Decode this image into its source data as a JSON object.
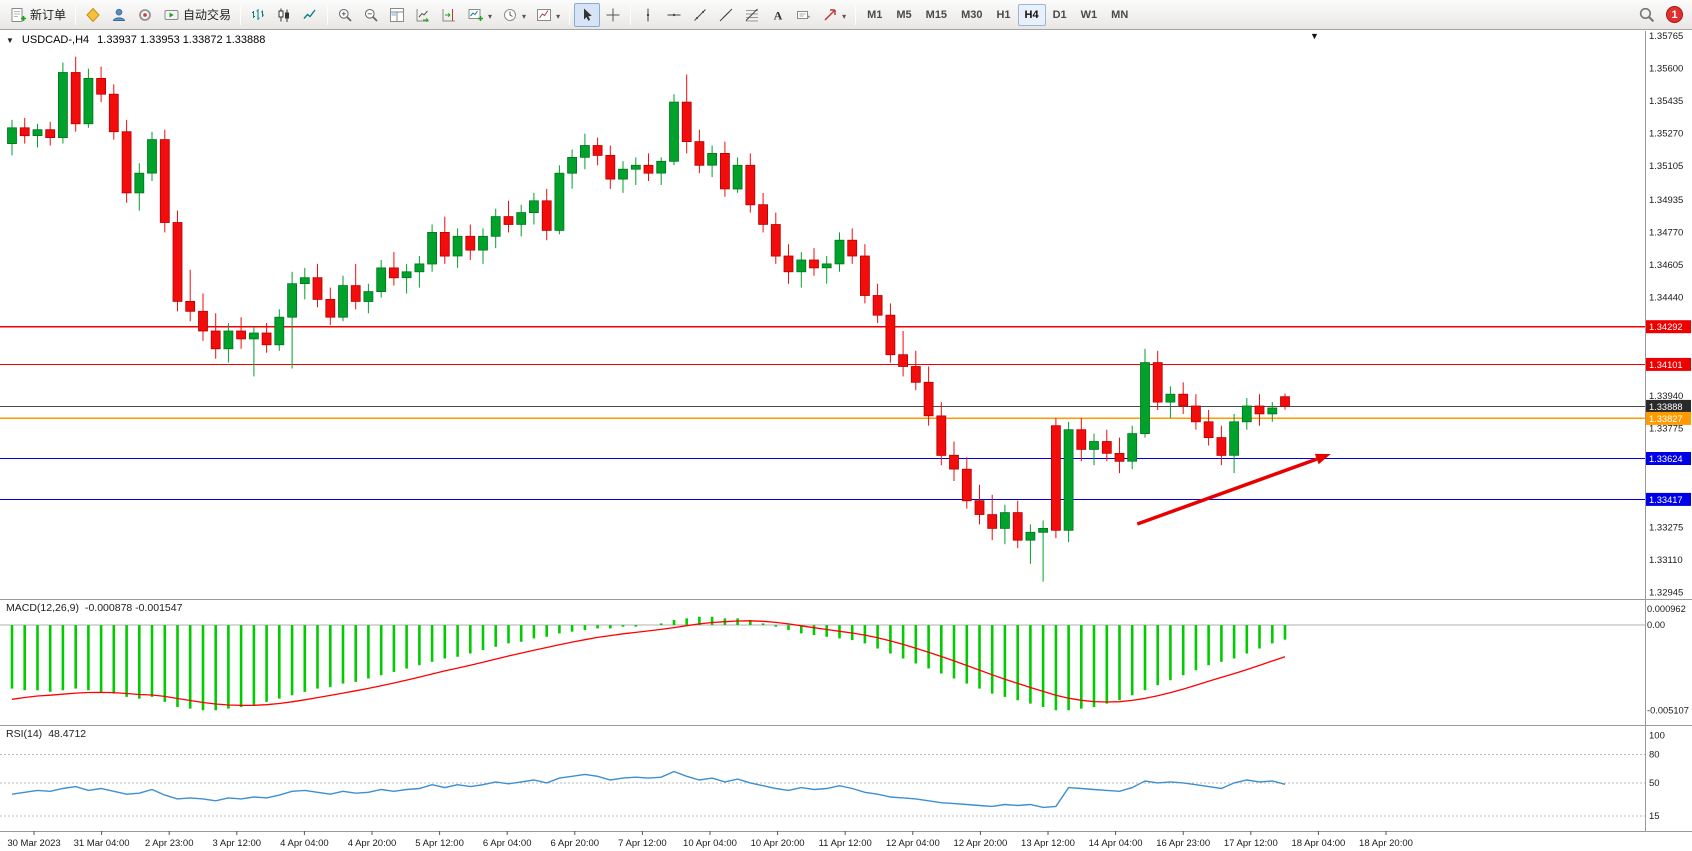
{
  "toolbar": {
    "new_order_label": "新订单",
    "autotrade_label": "自动交易",
    "timeframes": [
      "M1",
      "M5",
      "M15",
      "M30",
      "H1",
      "H4",
      "D1",
      "W1",
      "MN"
    ],
    "active_timeframe": "H4",
    "notification_count": "1"
  },
  "chart": {
    "symbol_label": "USDCAD-,H4",
    "ohlc_label": "1.33937 1.33953 1.33872 1.33888"
  },
  "indicators": {
    "macd": {
      "name": "MACD(12,26,9)",
      "values": "-0.000878 -0.001547"
    },
    "rsi": {
      "name": "RSI(14)",
      "value": "48.4712"
    }
  },
  "chart_data": {
    "type": "candlestick",
    "symbol": "USDCAD-",
    "timeframe": "H4",
    "ohlc_current": {
      "open": 1.33937,
      "high": 1.33953,
      "low": 1.33872,
      "close": 1.33888
    },
    "ylim": [
      1.32945,
      1.35765
    ],
    "up_color": "#00a22b",
    "up_border": "#00751d",
    "down_color": "#f20c0c",
    "down_border": "#b80000",
    "price_axis_labels": [
      "1.35765",
      "1.35600",
      "1.35435",
      "1.35270",
      "1.35105",
      "1.34935",
      "1.34770",
      "1.34605",
      "1.34440",
      "1.33940",
      "1.33775",
      "1.33275",
      "1.33110",
      "1.32945"
    ],
    "levels": [
      {
        "price": 1.34292,
        "label": "1.34292",
        "color": "#f00000",
        "badge": "#ef0000",
        "width": 1.3
      },
      {
        "price": 1.34101,
        "label": "1.34101",
        "color": "#f00000",
        "badge": "#ef0000",
        "width": 1.3
      },
      {
        "price": 1.33888,
        "label": "1.33888",
        "color": "#4a4a4a",
        "badge": "#2a2a2a",
        "width": 1
      },
      {
        "price": 1.33827,
        "label": "1.33827",
        "color": "#ff9b00",
        "badge": "#ff9b00",
        "width": 1.5
      },
      {
        "price": 1.33624,
        "label": "1.33624",
        "color": "#0000e8",
        "badge": "#0000e8",
        "width": 1.3
      },
      {
        "price": 1.33417,
        "label": "1.33417",
        "color": "#0000e8",
        "badge": "#0000e8",
        "width": 1.3
      }
    ],
    "trend_arrow": {
      "color": "#e80000",
      "i1": 88.4,
      "p1": 1.33292,
      "i2": 103.6,
      "p2": 1.33647
    },
    "candles": [
      [
        1.3522,
        1.3534,
        1.3516,
        1.353
      ],
      [
        1.353,
        1.3535,
        1.3522,
        1.3526
      ],
      [
        1.3526,
        1.3532,
        1.352,
        1.3529
      ],
      [
        1.3529,
        1.3533,
        1.3521,
        1.3525
      ],
      [
        1.3525,
        1.3563,
        1.3522,
        1.3558
      ],
      [
        1.3558,
        1.3566,
        1.3528,
        1.3532
      ],
      [
        1.3532,
        1.356,
        1.353,
        1.3555
      ],
      [
        1.3555,
        1.3561,
        1.3543,
        1.3547
      ],
      [
        1.3547,
        1.3552,
        1.3524,
        1.3528
      ],
      [
        1.3528,
        1.3534,
        1.3492,
        1.3497
      ],
      [
        1.3497,
        1.3512,
        1.3488,
        1.3507
      ],
      [
        1.3507,
        1.3528,
        1.3503,
        1.3524
      ],
      [
        1.3524,
        1.3529,
        1.3477,
        1.3482
      ],
      [
        1.3482,
        1.3488,
        1.3437,
        1.3442
      ],
      [
        1.3442,
        1.3458,
        1.3432,
        1.3437
      ],
      [
        1.3437,
        1.3446,
        1.3422,
        1.3427
      ],
      [
        1.3427,
        1.3436,
        1.3413,
        1.3418
      ],
      [
        1.3418,
        1.3431,
        1.3411,
        1.3427
      ],
      [
        1.3427,
        1.3434,
        1.3418,
        1.3423
      ],
      [
        1.3423,
        1.3429,
        1.3404,
        1.3426
      ],
      [
        1.3426,
        1.3431,
        1.3416,
        1.342
      ],
      [
        1.342,
        1.3438,
        1.3417,
        1.3434
      ],
      [
        1.3434,
        1.3457,
        1.3408,
        1.3451
      ],
      [
        1.3451,
        1.3459,
        1.3443,
        1.3454
      ],
      [
        1.3454,
        1.3461,
        1.3439,
        1.3443
      ],
      [
        1.3443,
        1.3449,
        1.343,
        1.3434
      ],
      [
        1.3434,
        1.3455,
        1.3432,
        1.345
      ],
      [
        1.345,
        1.3461,
        1.3438,
        1.3442
      ],
      [
        1.3442,
        1.3451,
        1.3436,
        1.3447
      ],
      [
        1.3447,
        1.3463,
        1.3444,
        1.3459
      ],
      [
        1.3459,
        1.3467,
        1.345,
        1.3454
      ],
      [
        1.3454,
        1.3461,
        1.3446,
        1.3457
      ],
      [
        1.3457,
        1.3465,
        1.3449,
        1.3461
      ],
      [
        1.3461,
        1.3481,
        1.3457,
        1.3477
      ],
      [
        1.3477,
        1.3485,
        1.3461,
        1.3465
      ],
      [
        1.3465,
        1.3479,
        1.3459,
        1.3475
      ],
      [
        1.3475,
        1.3481,
        1.3463,
        1.3468
      ],
      [
        1.3468,
        1.3479,
        1.3461,
        1.3475
      ],
      [
        1.3475,
        1.3489,
        1.3469,
        1.3485
      ],
      [
        1.3485,
        1.3493,
        1.3477,
        1.3481
      ],
      [
        1.3481,
        1.3491,
        1.3475,
        1.3487
      ],
      [
        1.3487,
        1.3497,
        1.3481,
        1.3493
      ],
      [
        1.3493,
        1.3499,
        1.3473,
        1.3478
      ],
      [
        1.3478,
        1.3511,
        1.3476,
        1.3507
      ],
      [
        1.3507,
        1.3519,
        1.3499,
        1.3515
      ],
      [
        1.3515,
        1.3527,
        1.3509,
        1.3521
      ],
      [
        1.3521,
        1.3525,
        1.3511,
        1.3516
      ],
      [
        1.3516,
        1.3521,
        1.3499,
        1.3504
      ],
      [
        1.3504,
        1.3513,
        1.3497,
        1.3509
      ],
      [
        1.3509,
        1.3515,
        1.3501,
        1.3511
      ],
      [
        1.3511,
        1.3517,
        1.3503,
        1.3507
      ],
      [
        1.3507,
        1.3515,
        1.3501,
        1.3513
      ],
      [
        1.3513,
        1.3547,
        1.3511,
        1.3543
      ],
      [
        1.3543,
        1.3557,
        1.3517,
        1.3523
      ],
      [
        1.3523,
        1.3529,
        1.3507,
        1.3511
      ],
      [
        1.3511,
        1.3521,
        1.3505,
        1.3517
      ],
      [
        1.3517,
        1.3523,
        1.3495,
        1.3499
      ],
      [
        1.3499,
        1.3515,
        1.3497,
        1.3511
      ],
      [
        1.3511,
        1.3517,
        1.3487,
        1.3491
      ],
      [
        1.3491,
        1.3497,
        1.3477,
        1.3481
      ],
      [
        1.3481,
        1.3487,
        1.3461,
        1.3465
      ],
      [
        1.3465,
        1.3471,
        1.3451,
        1.3457
      ],
      [
        1.3457,
        1.3467,
        1.3449,
        1.3463
      ],
      [
        1.3463,
        1.3469,
        1.3455,
        1.3459
      ],
      [
        1.3459,
        1.3465,
        1.3451,
        1.3461
      ],
      [
        1.3461,
        1.3477,
        1.3457,
        1.3473
      ],
      [
        1.3473,
        1.3479,
        1.3461,
        1.3465
      ],
      [
        1.3465,
        1.3471,
        1.3441,
        1.3445
      ],
      [
        1.3445,
        1.3451,
        1.3431,
        1.3435
      ],
      [
        1.3435,
        1.3441,
        1.3411,
        1.3415
      ],
      [
        1.3415,
        1.3427,
        1.3404,
        1.3409
      ],
      [
        1.3409,
        1.3417,
        1.3397,
        1.3401
      ],
      [
        1.3401,
        1.3409,
        1.3379,
        1.3384
      ],
      [
        1.3384,
        1.3391,
        1.3359,
        1.3364
      ],
      [
        1.3364,
        1.3371,
        1.3351,
        1.3357
      ],
      [
        1.3357,
        1.3363,
        1.3337,
        1.3341
      ],
      [
        1.3341,
        1.3349,
        1.3329,
        1.3334
      ],
      [
        1.3334,
        1.3344,
        1.3321,
        1.3327
      ],
      [
        1.3327,
        1.3339,
        1.3319,
        1.3335
      ],
      [
        1.3335,
        1.3341,
        1.3317,
        1.3321
      ],
      [
        1.3321,
        1.3329,
        1.3309,
        1.3325
      ],
      [
        1.3325,
        1.3331,
        1.33,
        1.3327
      ],
      [
        1.3379,
        1.3383,
        1.3322,
        1.3326
      ],
      [
        1.3326,
        1.3381,
        1.332,
        1.3377
      ],
      [
        1.3377,
        1.3383,
        1.3361,
        1.3367
      ],
      [
        1.3367,
        1.3375,
        1.3359,
        1.3371
      ],
      [
        1.3371,
        1.3377,
        1.3361,
        1.3365
      ],
      [
        1.3365,
        1.3373,
        1.3355,
        1.3361
      ],
      [
        1.3361,
        1.3379,
        1.3357,
        1.3375
      ],
      [
        1.3375,
        1.3418,
        1.3373,
        1.3411
      ],
      [
        1.3411,
        1.3417,
        1.3387,
        1.3391
      ],
      [
        1.3391,
        1.3399,
        1.3383,
        1.3395
      ],
      [
        1.3395,
        1.3401,
        1.3385,
        1.3389
      ],
      [
        1.3389,
        1.3395,
        1.3377,
        1.3381
      ],
      [
        1.3381,
        1.3387,
        1.3369,
        1.3373
      ],
      [
        1.3373,
        1.3379,
        1.3359,
        1.3364
      ],
      [
        1.3364,
        1.3385,
        1.3355,
        1.3381
      ],
      [
        1.3381,
        1.3393,
        1.3377,
        1.3389
      ],
      [
        1.3389,
        1.3395,
        1.3379,
        1.3385
      ],
      [
        1.3385,
        1.3391,
        1.3381,
        1.3388
      ],
      [
        1.33937,
        1.33953,
        1.33872,
        1.33888
      ]
    ],
    "macd": {
      "ylim": [
        -0.0058,
        0.0012
      ],
      "bar_color": "#00cc00",
      "signal_color": "#ff0000",
      "signal_init": -0.0046,
      "axis_labels": [
        [
          "0.000962",
          0.000962
        ],
        [
          "0.00",
          0
        ],
        [
          "-0.005107",
          -0.005107
        ]
      ],
      "values": [
        -0.0038,
        -0.0039,
        -0.0039,
        -0.004,
        -0.0039,
        -0.0038,
        -0.0039,
        -0.004,
        -0.0041,
        -0.0043,
        -0.0044,
        -0.0043,
        -0.0046,
        -0.0049,
        -0.005,
        -0.0051,
        -0.0051,
        -0.005,
        -0.0049,
        -0.0048,
        -0.0046,
        -0.0044,
        -0.0042,
        -0.004,
        -0.0038,
        -0.0037,
        -0.0035,
        -0.0034,
        -0.0032,
        -0.003,
        -0.0028,
        -0.0026,
        -0.0024,
        -0.0022,
        -0.002,
        -0.0019,
        -0.0017,
        -0.0015,
        -0.0013,
        -0.0011,
        -0.001,
        -0.0008,
        -0.0007,
        -0.0005,
        -0.0004,
        -0.0003,
        -0.0002,
        -0.0002,
        -0.0001,
        -0.0001,
        0.0,
        0.0001,
        0.0003,
        0.0004,
        0.0005,
        0.0005,
        0.0004,
        0.0004,
        0.0003,
        0.0001,
        -0.0001,
        -0.0003,
        -0.0005,
        -0.0006,
        -0.0007,
        -0.0008,
        -0.0009,
        -0.0011,
        -0.0014,
        -0.0017,
        -0.002,
        -0.0023,
        -0.0026,
        -0.0029,
        -0.0032,
        -0.0035,
        -0.0038,
        -0.0041,
        -0.0043,
        -0.0045,
        -0.0047,
        -0.0049,
        -0.0051,
        -0.0051,
        -0.005,
        -0.0049,
        -0.0047,
        -0.0045,
        -0.0042,
        -0.0039,
        -0.0036,
        -0.0033,
        -0.003,
        -0.0027,
        -0.0024,
        -0.0022,
        -0.002,
        -0.0017,
        -0.0014,
        -0.0011,
        -0.000878
      ]
    },
    "rsi": {
      "ylim": [
        0,
        105
      ],
      "line_color": "#3d8fd1",
      "levels": [
        80,
        50,
        15
      ],
      "axis_labels": [
        [
          "100",
          100
        ],
        [
          "80",
          80
        ],
        [
          "50",
          50
        ],
        [
          "15",
          15
        ]
      ],
      "values": [
        38,
        40,
        42,
        41,
        44,
        46,
        42,
        44,
        41,
        38,
        39,
        43,
        37,
        33,
        34,
        33,
        31,
        34,
        33,
        35,
        34,
        37,
        41,
        42,
        40,
        38,
        41,
        39,
        40,
        43,
        41,
        43,
        44,
        48,
        45,
        48,
        46,
        48,
        51,
        49,
        51,
        53,
        50,
        55,
        57,
        59,
        57,
        53,
        55,
        56,
        55,
        56,
        62,
        57,
        53,
        55,
        51,
        54,
        50,
        47,
        44,
        42,
        45,
        43,
        44,
        47,
        44,
        40,
        38,
        35,
        34,
        33,
        31,
        29,
        28,
        27,
        26,
        25,
        27,
        26,
        27,
        24,
        25,
        45,
        44,
        43,
        42,
        41,
        45,
        52,
        50,
        51,
        50,
        48,
        46,
        44,
        50,
        53,
        51,
        52,
        48.4712
      ]
    },
    "time_labels": [
      "30 Mar 2023",
      "31 Mar 04:00",
      "2 Apr 23:00",
      "3 Apr 12:00",
      "4 Apr 04:00",
      "4 Apr 20:00",
      "5 Apr 12:00",
      "6 Apr 04:00",
      "6 Apr 20:00",
      "7 Apr 12:00",
      "10 Apr 04:00",
      "10 Apr 20:00",
      "11 Apr 12:00",
      "12 Apr 04:00",
      "12 Apr 20:00",
      "13 Apr 12:00",
      "14 Apr 04:00",
      "16 Apr 23:00",
      "17 Apr 12:00",
      "18 Apr 04:00",
      "18 Apr 20:00"
    ]
  }
}
